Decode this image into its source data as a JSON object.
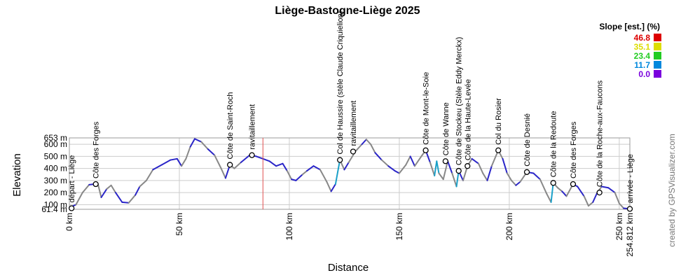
{
  "chart_data": {
    "type": "area",
    "title": "Liège-Bastogne-Liège 2025",
    "xlabel": "Distance",
    "ylabel": "Elevation",
    "xlim": [
      0,
      254.812
    ],
    "ylim": [
      61.4,
      653
    ],
    "x_ticks": [
      {
        "value": 0,
        "label": "0 km"
      },
      {
        "value": 50,
        "label": "50 km"
      },
      {
        "value": 100,
        "label": "100 km"
      },
      {
        "value": 150,
        "label": "150 km"
      },
      {
        "value": 200,
        "label": "200 km"
      },
      {
        "value": 250,
        "label": "250 km"
      },
      {
        "value": 254.812,
        "label": "254.812 km"
      }
    ],
    "y_ticks": [
      {
        "value": 61.4,
        "label": "61.4 m"
      },
      {
        "value": 100,
        "label": "100 m"
      },
      {
        "value": 200,
        "label": "200 m"
      },
      {
        "value": 300,
        "label": "300 m"
      },
      {
        "value": 400,
        "label": "400 m"
      },
      {
        "value": 500,
        "label": "500 m"
      },
      {
        "value": 600,
        "label": "600 m"
      },
      {
        "value": 653,
        "label": "653 m"
      }
    ],
    "grid": true,
    "profile": [
      [
        0,
        75
      ],
      [
        3,
        100
      ],
      [
        6,
        200
      ],
      [
        9,
        265
      ],
      [
        11.5,
        270
      ],
      [
        13,
        270
      ],
      [
        14.5,
        160
      ],
      [
        17,
        230
      ],
      [
        19,
        260
      ],
      [
        21,
        200
      ],
      [
        24,
        120
      ],
      [
        27,
        115
      ],
      [
        30,
        180
      ],
      [
        32,
        250
      ],
      [
        35,
        300
      ],
      [
        38,
        390
      ],
      [
        42,
        430
      ],
      [
        46,
        470
      ],
      [
        49,
        480
      ],
      [
        51,
        420
      ],
      [
        53,
        480
      ],
      [
        55,
        580
      ],
      [
        57,
        645
      ],
      [
        60,
        620
      ],
      [
        63,
        560
      ],
      [
        66,
        510
      ],
      [
        69,
        400
      ],
      [
        71,
        320
      ],
      [
        73,
        430
      ],
      [
        75,
        400
      ],
      [
        78,
        450
      ],
      [
        82,
        510
      ],
      [
        85,
        500
      ],
      [
        88,
        480
      ],
      [
        91,
        460
      ],
      [
        94,
        420
      ],
      [
        97,
        440
      ],
      [
        99,
        380
      ],
      [
        101,
        310
      ],
      [
        103,
        300
      ],
      [
        106,
        350
      ],
      [
        108,
        380
      ],
      [
        111,
        420
      ],
      [
        114,
        390
      ],
      [
        117,
        290
      ],
      [
        119,
        210
      ],
      [
        121,
        270
      ],
      [
        123,
        470
      ],
      [
        125,
        390
      ],
      [
        127,
        450
      ],
      [
        130,
        540
      ],
      [
        133,
        600
      ],
      [
        135,
        640
      ],
      [
        137,
        600
      ],
      [
        139,
        530
      ],
      [
        142,
        470
      ],
      [
        145,
        420
      ],
      [
        148,
        380
      ],
      [
        150,
        360
      ],
      [
        153,
        430
      ],
      [
        155,
        500
      ],
      [
        157,
        420
      ],
      [
        160,
        500
      ],
      [
        162,
        550
      ],
      [
        164,
        450
      ],
      [
        166,
        340
      ],
      [
        167,
        460
      ],
      [
        168,
        360
      ],
      [
        170,
        310
      ],
      [
        172,
        460
      ],
      [
        174,
        360
      ],
      [
        176,
        250
      ],
      [
        177,
        380
      ],
      [
        179,
        300
      ],
      [
        181,
        420
      ],
      [
        183,
        480
      ],
      [
        186,
        440
      ],
      [
        188,
        360
      ],
      [
        190,
        300
      ],
      [
        192,
        420
      ],
      [
        195,
        550
      ],
      [
        197,
        480
      ],
      [
        199,
        360
      ],
      [
        201,
        300
      ],
      [
        203,
        260
      ],
      [
        205,
        290
      ],
      [
        208,
        370
      ],
      [
        211,
        360
      ],
      [
        214,
        310
      ],
      [
        217,
        190
      ],
      [
        219,
        120
      ],
      [
        220,
        280
      ],
      [
        222,
        240
      ],
      [
        224,
        210
      ],
      [
        226,
        170
      ],
      [
        229,
        270
      ],
      [
        231,
        250
      ],
      [
        234,
        170
      ],
      [
        236,
        90
      ],
      [
        238,
        120
      ],
      [
        240,
        200
      ],
      [
        242,
        250
      ],
      [
        245,
        240
      ],
      [
        248,
        200
      ],
      [
        250,
        110
      ],
      [
        252,
        70
      ],
      [
        254.812,
        65
      ]
    ],
    "waypoints": [
      {
        "x": 1,
        "y": 70,
        "label": "départ - Liège",
        "marker": true
      },
      {
        "x": 12,
        "y": 270,
        "label": "Côte des Forges",
        "marker": true
      },
      {
        "x": 73,
        "y": 430,
        "label": "Côte de Saint-Roch",
        "marker": true
      },
      {
        "x": 83,
        "y": 510,
        "label": "ravitaillement",
        "marker": true
      },
      {
        "x": 123,
        "y": 470,
        "label": "Col de Haussire (stèle Claude Criquielion)",
        "marker": true
      },
      {
        "x": 129,
        "y": 540,
        "label": "ravitaillement",
        "marker": true
      },
      {
        "x": 162,
        "y": 550,
        "label": "Côte de Mont-le-Soie",
        "marker": true
      },
      {
        "x": 171,
        "y": 460,
        "label": "Côte de Wanne",
        "marker": true
      },
      {
        "x": 177,
        "y": 380,
        "label": "Côte de Stockeu (Stèle Eddy Merckx)",
        "marker": true
      },
      {
        "x": 181,
        "y": 420,
        "label": "Côte de la Haute-Levée",
        "marker": true
      },
      {
        "x": 195,
        "y": 550,
        "label": "Col du Rosier",
        "marker": true
      },
      {
        "x": 208,
        "y": 370,
        "label": "Côte de Desnié",
        "marker": true
      },
      {
        "x": 220,
        "y": 280,
        "label": "Côte de la Redoute",
        "marker": true
      },
      {
        "x": 229,
        "y": 270,
        "label": "Côte des Forges",
        "marker": true
      },
      {
        "x": 241,
        "y": 200,
        "label": "Côte de la Roche-aux-Faucons",
        "marker": true
      },
      {
        "x": 254.812,
        "y": 65,
        "label": "arrivée - Liège",
        "marker": true
      }
    ],
    "vertical_lines": [
      {
        "x": 88,
        "color": "#e05050"
      }
    ],
    "legend": {
      "title": "Slope [est.] (%)",
      "placement": "top-right",
      "entries": [
        {
          "label": "46.8",
          "color": "#dd0000"
        },
        {
          "label": "35.1",
          "color": "#dddd00"
        },
        {
          "label": "23.4",
          "color": "#22cc22"
        },
        {
          "label": "11.7",
          "color": "#0088dd"
        },
        {
          "label": "0.0",
          "color": "#7a00dd"
        }
      ]
    },
    "line_colors": {
      "base": "#888888",
      "flat": "#2a25c8",
      "steep": "#1aa0c8"
    }
  },
  "credit": "created by GPSVisualizer.com"
}
